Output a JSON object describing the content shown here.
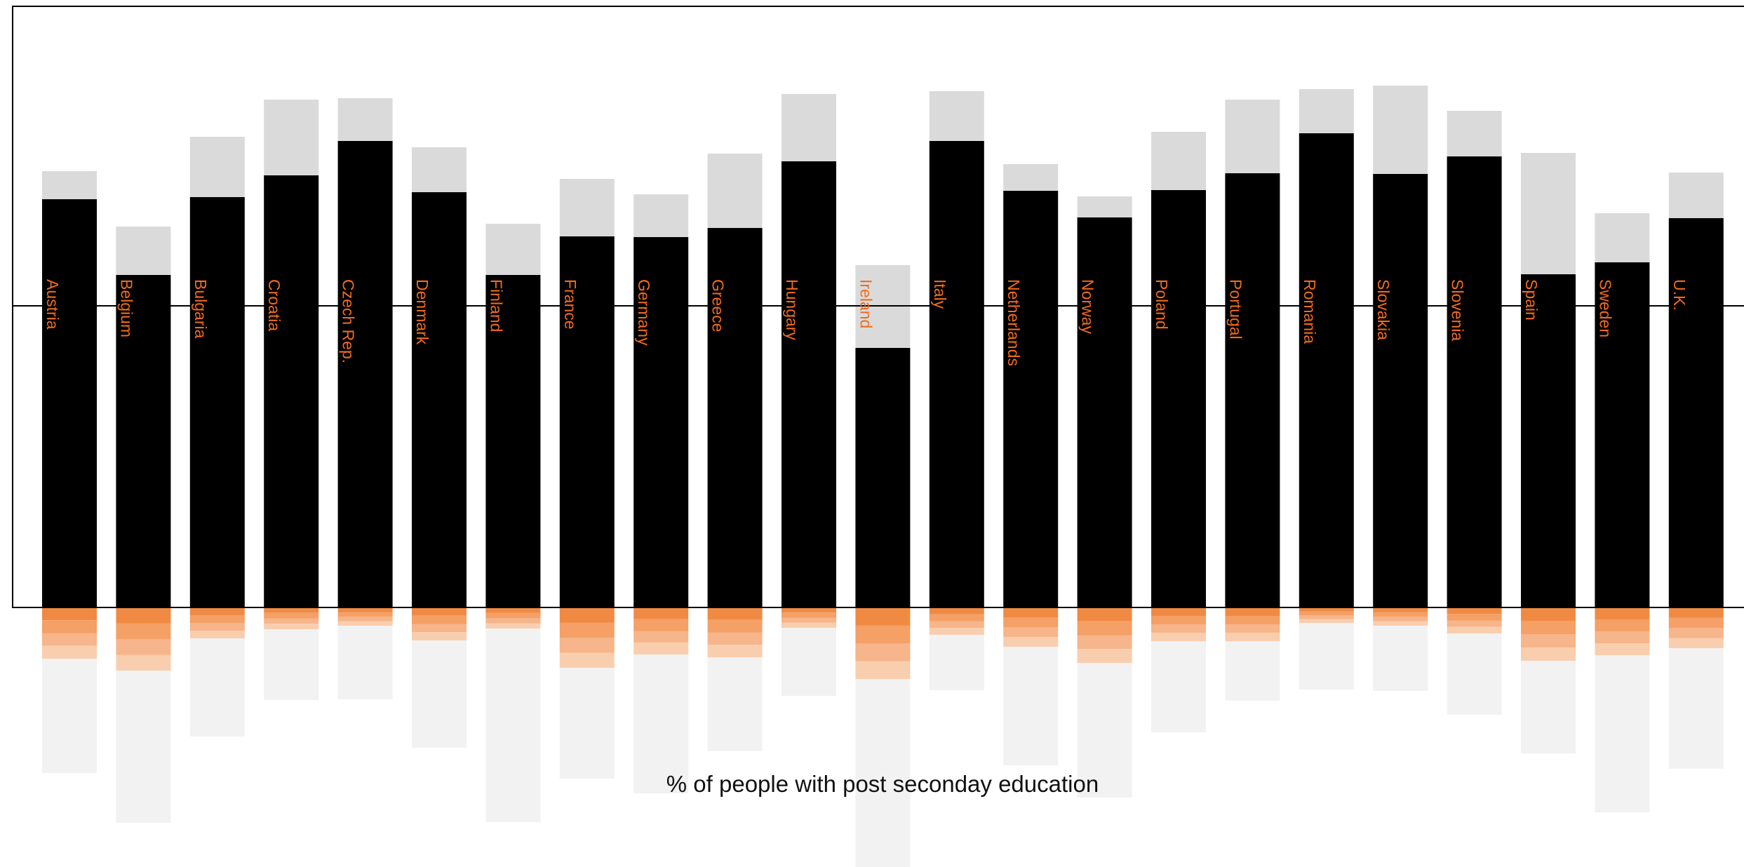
{
  "chart_data": {
    "type": "bar",
    "title": "",
    "caption": "% of people with post seconday education",
    "categories": [
      "Austria",
      "Belgium",
      "Bulgaria",
      "Croatia",
      "Czech Rep.",
      "Denmark",
      "Finland",
      "France",
      "Germany",
      "Greece",
      "Hungary",
      "Ireland",
      "Italy",
      "Netherlands",
      "Norway",
      "Poland",
      "Portugal",
      "Romania",
      "Slovakia",
      "Slovenia",
      "Spain",
      "Sweden",
      "U.K."
    ],
    "series": [
      {
        "values": [
          582,
          474,
          585,
          616,
          665,
          592,
          474,
          529,
          528,
          541,
          636,
          370,
          665,
          594,
          556,
          595,
          619,
          676,
          618,
          643,
          475,
          492,
          555
        ]
      },
      {
        "values": [
          40,
          69,
          86,
          108,
          61,
          64,
          73,
          82,
          61,
          106,
          96,
          118,
          71,
          38,
          30,
          83,
          105,
          63,
          126,
          65,
          173,
          70,
          65
        ]
      },
      {
        "values": [
          73,
          90,
          44,
          31,
          26,
          47,
          30,
          86,
          67,
          71,
          29,
          102,
          39,
          56,
          79,
          48,
          48,
          22,
          26,
          37,
          76,
          68,
          58
        ]
      },
      {
        "values": [
          163,
          217,
          140,
          101,
          105,
          153,
          276,
          158,
          198,
          134,
          97,
          272,
          79,
          169,
          192,
          130,
          85,
          95,
          93,
          116,
          132,
          224,
          172
        ]
      }
    ],
    "series_colors": [
      "#000000",
      "#dadada",
      "#f5a26b",
      "#f2f2f2"
    ],
    "ylim_up": [
      0,
      860
    ],
    "ylim_down": [
      0,
      371
    ],
    "grid": false,
    "legend": "none"
  }
}
